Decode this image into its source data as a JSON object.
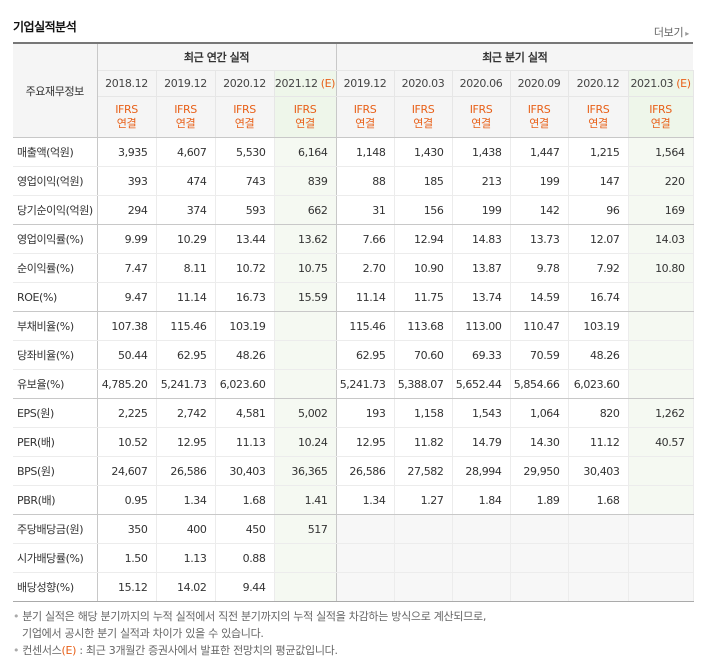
{
  "header": {
    "title": "기업실적분석",
    "more_label": "더보기"
  },
  "table": {
    "item_header": "주요재무정보",
    "annual_group": "최근 연간 실적",
    "quarter_group": "최근 분기 실적",
    "annual_periods": [
      {
        "label": "2018.12",
        "est": ""
      },
      {
        "label": "2019.12",
        "est": ""
      },
      {
        "label": "2020.12",
        "est": ""
      },
      {
        "label": "2021.12",
        "est": "(E)"
      }
    ],
    "quarter_periods": [
      {
        "label": "2019.12",
        "est": ""
      },
      {
        "label": "2020.03",
        "est": ""
      },
      {
        "label": "2020.06",
        "est": ""
      },
      {
        "label": "2020.09",
        "est": ""
      },
      {
        "label": "2020.12",
        "est": ""
      },
      {
        "label": "2021.03",
        "est": "(E)"
      }
    ],
    "basis_line1": "IFRS",
    "basis_line2": "연결",
    "rows": [
      {
        "label": "매출액(억원)",
        "values": [
          "3,935",
          "4,607",
          "5,530",
          "6,164",
          "1,148",
          "1,430",
          "1,438",
          "1,447",
          "1,215",
          "1,564"
        ]
      },
      {
        "label": "영업이익(억원)",
        "values": [
          "393",
          "474",
          "743",
          "839",
          "88",
          "185",
          "213",
          "199",
          "147",
          "220"
        ]
      },
      {
        "label": "당기순이익(억원)",
        "values": [
          "294",
          "374",
          "593",
          "662",
          "31",
          "156",
          "199",
          "142",
          "96",
          "169"
        ]
      },
      {
        "label": "영업이익률(%)",
        "values": [
          "9.99",
          "10.29",
          "13.44",
          "13.62",
          "7.66",
          "12.94",
          "14.83",
          "13.73",
          "12.07",
          "14.03"
        ]
      },
      {
        "label": "순이익률(%)",
        "values": [
          "7.47",
          "8.11",
          "10.72",
          "10.75",
          "2.70",
          "10.90",
          "13.87",
          "9.78",
          "7.92",
          "10.80"
        ]
      },
      {
        "label": "ROE(%)",
        "values": [
          "9.47",
          "11.14",
          "16.73",
          "15.59",
          "11.14",
          "11.75",
          "13.74",
          "14.59",
          "16.74",
          ""
        ]
      },
      {
        "label": "부채비율(%)",
        "values": [
          "107.38",
          "115.46",
          "103.19",
          "",
          "115.46",
          "113.68",
          "113.00",
          "110.47",
          "103.19",
          ""
        ]
      },
      {
        "label": "당좌비율(%)",
        "values": [
          "50.44",
          "62.95",
          "48.26",
          "",
          "62.95",
          "70.60",
          "69.33",
          "70.59",
          "48.26",
          ""
        ]
      },
      {
        "label": "유보율(%)",
        "values": [
          "4,785.20",
          "5,241.73",
          "6,023.60",
          "",
          "5,241.73",
          "5,388.07",
          "5,652.44",
          "5,854.66",
          "6,023.60",
          ""
        ]
      },
      {
        "label": "EPS(원)",
        "values": [
          "2,225",
          "2,742",
          "4,581",
          "5,002",
          "193",
          "1,158",
          "1,543",
          "1,064",
          "820",
          "1,262"
        ]
      },
      {
        "label": "PER(배)",
        "values": [
          "10.52",
          "12.95",
          "11.13",
          "10.24",
          "12.95",
          "11.82",
          "14.79",
          "14.30",
          "11.12",
          "40.57"
        ]
      },
      {
        "label": "BPS(원)",
        "values": [
          "24,607",
          "26,586",
          "30,403",
          "36,365",
          "26,586",
          "27,582",
          "28,994",
          "29,950",
          "30,403",
          ""
        ]
      },
      {
        "label": "PBR(배)",
        "values": [
          "0.95",
          "1.34",
          "1.68",
          "1.41",
          "1.34",
          "1.27",
          "1.84",
          "1.89",
          "1.68",
          ""
        ]
      },
      {
        "label": "주당배당금(원)",
        "values": [
          "350",
          "400",
          "450",
          "517",
          "",
          "",
          "",
          "",
          "",
          ""
        ]
      },
      {
        "label": "시가배당률(%)",
        "values": [
          "1.50",
          "1.13",
          "0.88",
          "",
          "",
          "",
          "",
          "",
          "",
          ""
        ]
      },
      {
        "label": "배당성향(%)",
        "values": [
          "15.12",
          "14.02",
          "9.44",
          "",
          "",
          "",
          "",
          "",
          "",
          ""
        ]
      }
    ]
  },
  "notes": {
    "line1": "분기 실적은 해당 분기까지의 누적 실적에서 직전 분기까지의 누적 실적을 차감하는 방식으로 계산되므로,",
    "line2": "기업에서 공시한 분기 실적과 차이가 있을 수 있습니다.",
    "line3_prefix": "컨센서스",
    "line3_mark": "(E)",
    "line3_text": " : 최근 3개월간 증권사에서 발표한 전망치의 평균값입니다."
  },
  "colors": {
    "accent_orange": "#e8611a",
    "estimate_bg": "#eef6ea",
    "header_bg": "#f5f5f5"
  }
}
